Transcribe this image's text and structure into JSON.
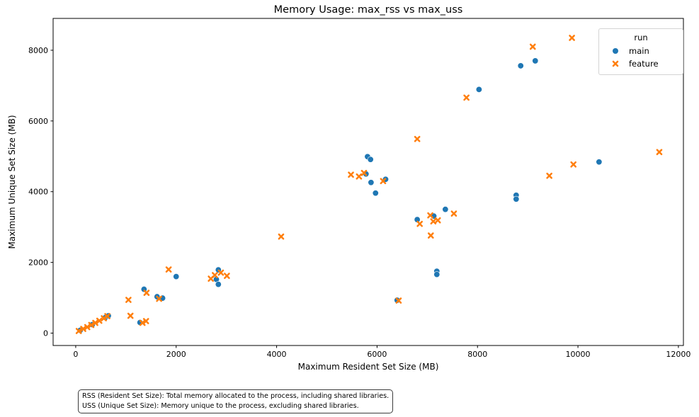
{
  "chart_data": {
    "type": "scatter",
    "title": "Memory Usage: max_rss vs max_uss",
    "xlabel": "Maximum Resident Set Size (MB)",
    "ylabel": "Maximum Unique Set Size (MB)",
    "xlim": [
      -450,
      12100
    ],
    "ylim": [
      -350,
      8900
    ],
    "xticks": [
      0,
      2000,
      4000,
      6000,
      8000,
      10000,
      12000
    ],
    "yticks": [
      0,
      2000,
      4000,
      6000,
      8000
    ],
    "grid": false,
    "legend": {
      "title": "run",
      "position": "upper right"
    },
    "series": [
      {
        "name": "main",
        "marker": "circle",
        "color": "#1f77b4",
        "points": [
          [
            90,
            80
          ],
          [
            330,
            240
          ],
          [
            590,
            440
          ],
          [
            650,
            490
          ],
          [
            1280,
            300
          ],
          [
            1360,
            1240
          ],
          [
            1620,
            1030
          ],
          [
            1730,
            990
          ],
          [
            2000,
            1600
          ],
          [
            2800,
            1520
          ],
          [
            2840,
            1790
          ],
          [
            2840,
            1380
          ],
          [
            5780,
            4500
          ],
          [
            5810,
            4990
          ],
          [
            5870,
            4910
          ],
          [
            5880,
            4260
          ],
          [
            5970,
            3960
          ],
          [
            6170,
            4350
          ],
          [
            6400,
            930
          ],
          [
            6800,
            3210
          ],
          [
            7130,
            3310
          ],
          [
            7190,
            1750
          ],
          [
            7190,
            1660
          ],
          [
            7360,
            3500
          ],
          [
            8030,
            6890
          ],
          [
            8770,
            3900
          ],
          [
            8770,
            3790
          ],
          [
            8860,
            7560
          ],
          [
            9150,
            7700
          ],
          [
            10420,
            4840
          ]
        ]
      },
      {
        "name": "feature",
        "marker": "x",
        "color": "#ff7f0e",
        "points": [
          [
            60,
            60
          ],
          [
            150,
            120
          ],
          [
            230,
            170
          ],
          [
            310,
            230
          ],
          [
            390,
            290
          ],
          [
            470,
            350
          ],
          [
            560,
            420
          ],
          [
            630,
            480
          ],
          [
            1050,
            940
          ],
          [
            1090,
            490
          ],
          [
            1330,
            290
          ],
          [
            1400,
            340
          ],
          [
            1410,
            1140
          ],
          [
            1660,
            970
          ],
          [
            1850,
            1800
          ],
          [
            2690,
            1540
          ],
          [
            2770,
            1640
          ],
          [
            2890,
            1710
          ],
          [
            3010,
            1620
          ],
          [
            4090,
            2730
          ],
          [
            5480,
            4480
          ],
          [
            5640,
            4430
          ],
          [
            5740,
            4530
          ],
          [
            6120,
            4300
          ],
          [
            6430,
            920
          ],
          [
            6800,
            5490
          ],
          [
            6850,
            3090
          ],
          [
            7060,
            3330
          ],
          [
            7070,
            2760
          ],
          [
            7120,
            3160
          ],
          [
            7210,
            3190
          ],
          [
            7530,
            3380
          ],
          [
            7780,
            6660
          ],
          [
            9100,
            8100
          ],
          [
            9430,
            4450
          ],
          [
            9880,
            8350
          ],
          [
            9910,
            4770
          ],
          [
            11620,
            5120
          ]
        ]
      }
    ]
  },
  "footnote": {
    "lines": [
      "RSS (Resident Set Size): Total memory allocated to the process, including shared libraries.",
      "USS (Unique Set Size): Memory unique to the process, excluding shared libraries."
    ]
  },
  "style": {
    "spine_color": "#000000",
    "tick_font_size": 11,
    "marker_size": 4.2
  }
}
